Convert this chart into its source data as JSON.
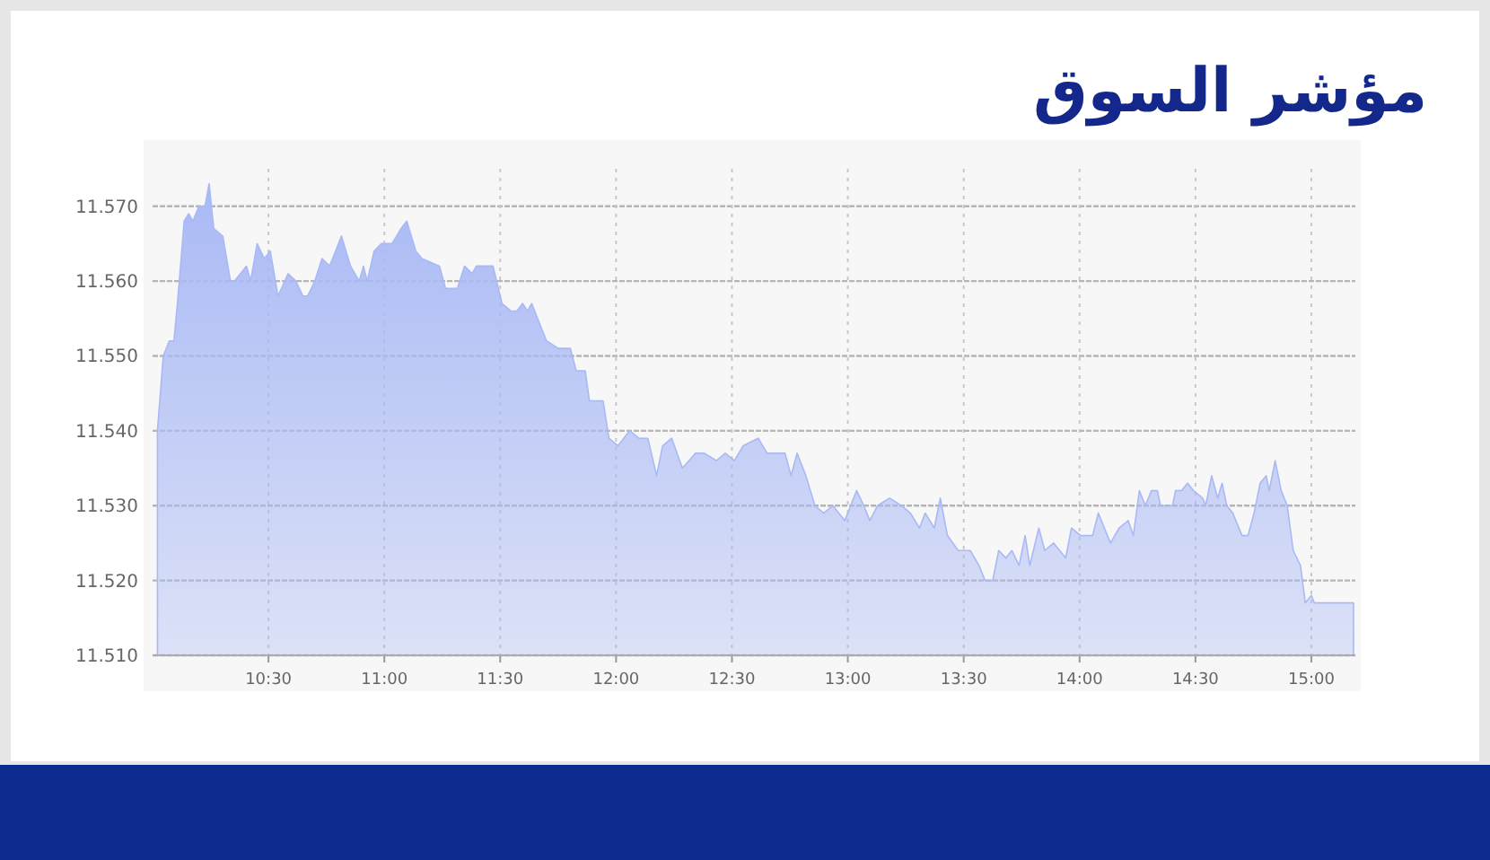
{
  "chart_data": {
    "type": "area",
    "title": "مؤشر السوق",
    "xlim": [
      10.0,
      15.19
    ],
    "ylim": [
      11510,
      11575
    ],
    "xticks": [
      {
        "value": 10.5,
        "label": "10:30"
      },
      {
        "value": 11,
        "label": "11:00"
      },
      {
        "value": 11.5,
        "label": "11:30"
      },
      {
        "value": 12,
        "label": "12:00"
      },
      {
        "value": 12.5,
        "label": "12:30"
      },
      {
        "value": 13,
        "label": "13:00"
      },
      {
        "value": 13.5,
        "label": "13:30"
      },
      {
        "value": 14,
        "label": "14:00"
      },
      {
        "value": 14.5,
        "label": "14:30"
      },
      {
        "value": 15,
        "label": "15:00"
      }
    ],
    "yticks": [
      {
        "value": 11510,
        "label": "11.510"
      },
      {
        "value": 11520,
        "label": "11.520"
      },
      {
        "value": 11530,
        "label": "11.530"
      },
      {
        "value": 11540,
        "label": "11.540"
      },
      {
        "value": 11550,
        "label": "11.550"
      },
      {
        "value": 11560,
        "label": "11.560"
      },
      {
        "value": 11570,
        "label": "11.570"
      }
    ],
    "grid": true,
    "series": [
      {
        "color": "#a9b9f5",
        "x": [
          10.021,
          10.046,
          10.072,
          10.092,
          10.11,
          10.136,
          10.156,
          10.174,
          10.2,
          10.226,
          10.244,
          10.264,
          10.303,
          10.336,
          10.354,
          10.405,
          10.423,
          10.451,
          10.482,
          10.508,
          10.541,
          10.585,
          10.618,
          10.649,
          10.669,
          10.7,
          10.731,
          10.764,
          10.815,
          10.854,
          10.892,
          10.91,
          10.926,
          10.956,
          10.987,
          11.033,
          11.072,
          11.097,
          11.136,
          11.162,
          11.238,
          11.264,
          11.315,
          11.346,
          11.379,
          11.397,
          11.431,
          11.469,
          11.508,
          11.546,
          11.572,
          11.597,
          11.618,
          11.636,
          11.674,
          11.7,
          11.751,
          11.803,
          11.828,
          11.867,
          11.885,
          11.918,
          11.944,
          11.969,
          12.008,
          12.059,
          12.098,
          12.137,
          12.175,
          12.201,
          12.24,
          12.286,
          12.343,
          12.381,
          12.433,
          12.471,
          12.51,
          12.549,
          12.613,
          12.652,
          12.729,
          12.755,
          12.781,
          12.819,
          12.858,
          12.896,
          12.935,
          12.987,
          13.038,
          13.069,
          13.095,
          13.128,
          13.18,
          13.231,
          13.27,
          13.309,
          13.334,
          13.373,
          13.399,
          13.43,
          13.476,
          13.528,
          13.566,
          13.592,
          13.625,
          13.651,
          13.682,
          13.708,
          13.739,
          13.765,
          13.785,
          13.824,
          13.85,
          13.888,
          13.94,
          13.965,
          14.004,
          14.056,
          14.081,
          14.133,
          14.171,
          14.21,
          14.232,
          14.258,
          14.284,
          14.31,
          14.336,
          14.349,
          14.401,
          14.414,
          14.44,
          14.466,
          14.492,
          14.531,
          14.544,
          14.57,
          14.596,
          14.615,
          14.635,
          14.661,
          14.701,
          14.727,
          14.753,
          14.779,
          14.805,
          14.818,
          14.844,
          14.87,
          14.896,
          14.922,
          14.953,
          14.974,
          15.0,
          15.013,
          15.182
        ],
        "values": [
          11540,
          11550,
          11552,
          11552,
          11558,
          11568,
          11569,
          11568,
          11570,
          11570,
          11573,
          11567,
          11566,
          11560,
          11560,
          11562,
          11560,
          11565,
          11563,
          11564,
          11558,
          11561,
          11560,
          11558,
          11558,
          11560,
          11563,
          11562,
          11566,
          11562,
          11560,
          11562,
          11560,
          11564,
          11565,
          11565,
          11567,
          11568,
          11564,
          11563,
          11562,
          11559,
          11559,
          11562,
          11561,
          11562,
          11562,
          11562,
          11557,
          11556,
          11556,
          11557,
          11556,
          11557,
          11554,
          11552,
          11551,
          11551,
          11548,
          11548,
          11544,
          11544,
          11544,
          11539,
          11538,
          11540,
          11539,
          11539,
          11534,
          11538,
          11539,
          11535,
          11537,
          11537,
          11536,
          11537,
          11536,
          11538,
          11539,
          11537,
          11537,
          11534,
          11537,
          11534,
          11530,
          11529,
          11530,
          11528,
          11532,
          11530,
          11528,
          11530,
          11531,
          11530,
          11529,
          11527,
          11529,
          11527,
          11531,
          11526,
          11524,
          11524,
          11522,
          11520,
          11520,
          11524,
          11523,
          11524,
          11522,
          11526,
          11522,
          11527,
          11524,
          11525,
          11523,
          11527,
          11526,
          11526,
          11529,
          11525,
          11527,
          11528,
          11526,
          11532,
          11530,
          11532,
          11532,
          11530,
          11530,
          11532,
          11532,
          11533,
          11532,
          11531,
          11530,
          11534,
          11531,
          11533,
          11530,
          11529,
          11526,
          11526,
          11529,
          11533,
          11534,
          11532,
          11536,
          11532,
          11530,
          11524,
          11522,
          11517,
          11518,
          11517,
          11517
        ]
      }
    ]
  }
}
